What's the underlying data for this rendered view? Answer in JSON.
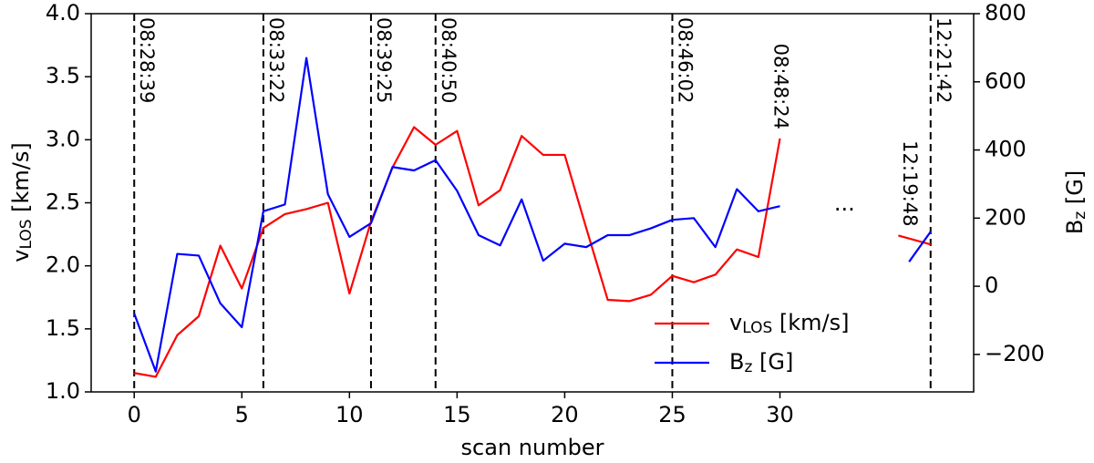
{
  "chart_data": {
    "type": "line",
    "xlabel": "scan number",
    "ylabel": {
      "text": "v",
      "sub": "LOS",
      "after": " [km/s]"
    },
    "y2label": {
      "text": "B",
      "sub": "z",
      "after": " [G]"
    },
    "xlim": [
      -2,
      39
    ],
    "xticks": [
      0,
      5,
      10,
      15,
      20,
      25,
      30
    ],
    "ylim": [
      1.0,
      4.0
    ],
    "yticks": [
      {
        "value": 1.0,
        "label": "1.0"
      },
      {
        "value": 1.5,
        "label": "1.5"
      },
      {
        "value": 2.0,
        "label": "2.0"
      },
      {
        "value": 2.5,
        "label": "2.5"
      },
      {
        "value": 3.0,
        "label": "3.0"
      },
      {
        "value": 3.5,
        "label": "3.5"
      },
      {
        "value": 4.0,
        "label": "4.0"
      }
    ],
    "y2lim": [
      -310,
      800
    ],
    "y2ticks": [
      {
        "value": -200,
        "label": "−200"
      },
      0,
      200,
      400,
      600,
      800
    ],
    "legend": "lower right",
    "series": [
      {
        "name": {
          "text": "v",
          "sub": "LOS",
          "after": " [km/s]"
        },
        "color": "#ff0000",
        "axis": "y",
        "x": [
          0,
          1,
          2,
          3,
          4,
          5,
          6,
          7,
          8,
          9,
          10,
          11,
          12,
          13,
          14,
          15,
          16,
          17,
          18,
          19,
          20,
          21,
          22,
          23,
          24,
          25,
          26,
          27,
          28,
          29,
          30,
          33,
          35.5,
          37
        ],
        "values": [
          1.15,
          1.12,
          1.45,
          1.6,
          2.16,
          1.82,
          2.3,
          2.41,
          2.45,
          2.5,
          1.78,
          2.35,
          2.78,
          3.1,
          2.96,
          3.07,
          2.48,
          2.6,
          3.03,
          2.88,
          2.88,
          2.3,
          1.73,
          1.72,
          1.77,
          1.92,
          1.87,
          1.93,
          2.13,
          2.07,
          3.01,
          null,
          2.24,
          2.17
        ]
      },
      {
        "name": {
          "text": "B",
          "sub": "z",
          "after": " [G]"
        },
        "color": "#0000ff",
        "axis": "y2",
        "x": [
          0,
          1,
          2,
          3,
          4,
          5,
          6,
          7,
          8,
          9,
          10,
          11,
          12,
          13,
          14,
          15,
          16,
          17,
          18,
          19,
          20,
          21,
          22,
          23,
          24,
          25,
          26,
          27,
          28,
          29,
          30,
          33,
          36,
          37
        ],
        "values": [
          -80,
          -250,
          95,
          90,
          -50,
          -120,
          220,
          240,
          670,
          270,
          145,
          185,
          350,
          340,
          370,
          280,
          150,
          120,
          255,
          75,
          125,
          115,
          150,
          150,
          170,
          195,
          200,
          115,
          285,
          220,
          235,
          null,
          72,
          160
        ]
      }
    ],
    "annotations": [
      {
        "x": 0,
        "label": "08:28:39",
        "line": true
      },
      {
        "x": 6,
        "label": "08:33:22",
        "line": true
      },
      {
        "x": 11,
        "label": "08:39:25",
        "line": true
      },
      {
        "x": 14,
        "label": "08:40:50",
        "line": true
      },
      {
        "x": 25,
        "label": "08:46:02",
        "line": true
      },
      {
        "x": 30,
        "label": "08:48:24",
        "line": false
      },
      {
        "x": 36,
        "label": "12:19:48",
        "line": false
      },
      {
        "x": 37,
        "label": "12:21:42",
        "line": true
      }
    ],
    "break_mark": {
      "x": 33,
      "label": "..."
    }
  }
}
